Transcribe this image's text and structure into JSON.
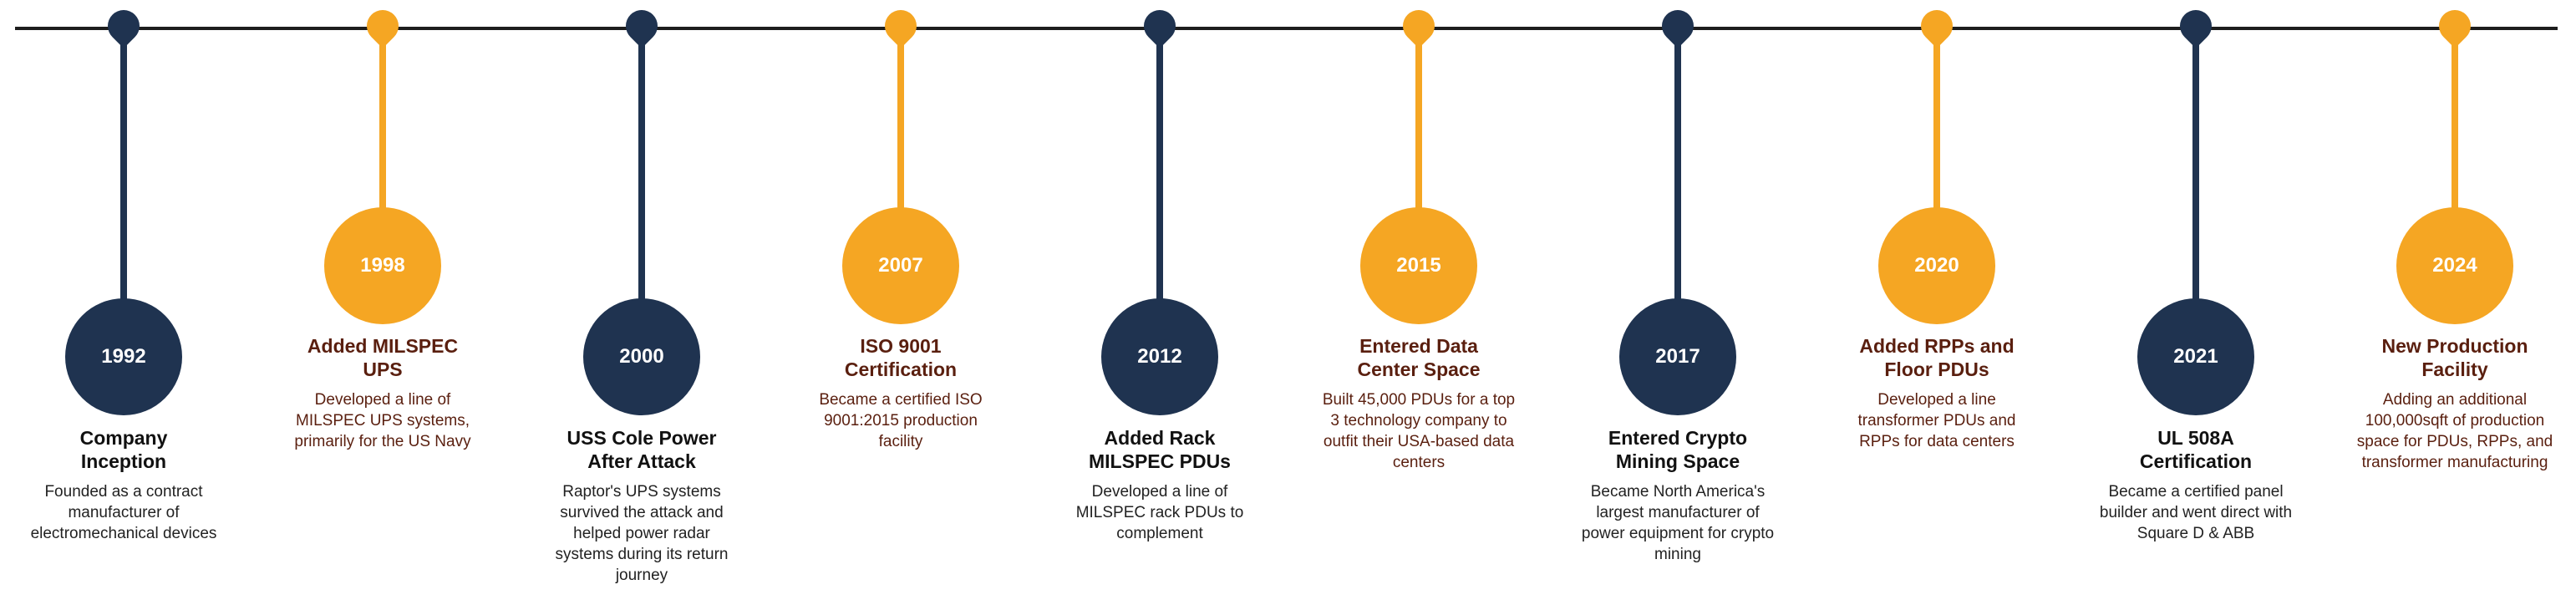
{
  "events": [
    {
      "year": "1992",
      "title": [
        "Company",
        "Inception"
      ],
      "description": [
        "Founded as a contract",
        "manufacturer of",
        "electromechanical devices"
      ],
      "color": "#1f3350"
    },
    {
      "year": "1998",
      "title": [
        "Added MILSPEC",
        "UPS"
      ],
      "description": [
        "Developed a line of",
        "MILSPEC UPS systems,",
        "primarily for the US Navy"
      ],
      "color": "#f5a623"
    },
    {
      "year": "2000",
      "title": [
        "USS Cole Power",
        "After Attack"
      ],
      "description": [
        "Raptor's UPS systems",
        "survived the attack and",
        "helped power radar",
        "systems during its return",
        "journey"
      ],
      "color": "#1f3350"
    },
    {
      "year": "2007",
      "title": [
        "ISO 9001",
        "Certification"
      ],
      "description": [
        "Became a certified ISO",
        "9001:2015 production",
        "facility"
      ],
      "color": "#f5a623"
    },
    {
      "year": "2012",
      "title": [
        "Added Rack",
        "MILSPEC PDUs"
      ],
      "description": [
        "Developed a line of",
        "MILSPEC rack PDUs to",
        "complement"
      ],
      "color": "#1f3350"
    },
    {
      "year": "2015",
      "title": [
        "Entered Data",
        "Center Space"
      ],
      "description": [
        "Built 45,000 PDUs for a top",
        "3 technology company to",
        "outfit their USA-based data",
        "centers"
      ],
      "color": "#f5a623"
    },
    {
      "year": "2017",
      "title": [
        "Entered Crypto",
        "Mining Space"
      ],
      "description": [
        "Became North America's",
        "largest manufacturer of",
        "power equipment for crypto",
        "mining"
      ],
      "color": "#1f3350"
    },
    {
      "year": "2020",
      "title": [
        "Added RPPs and",
        "Floor PDUs"
      ],
      "description": [
        "Developed a line",
        "transformer PDUs and",
        "RPPs for data centers"
      ],
      "color": "#f5a623"
    },
    {
      "year": "2021",
      "title": [
        "UL 508A",
        "Certification"
      ],
      "description": [
        "Became a certified panel",
        "builder and went direct with",
        "Square D & ABB"
      ],
      "color": "#1f3350"
    },
    {
      "year": "2024",
      "title": [
        "New Production",
        "Facility"
      ],
      "description": [
        "Adding an additional",
        "100,000sqft of production",
        "space for PDUs, RPPs, and",
        "transformer manufacturing"
      ],
      "color": "#f5a623"
    }
  ]
}
